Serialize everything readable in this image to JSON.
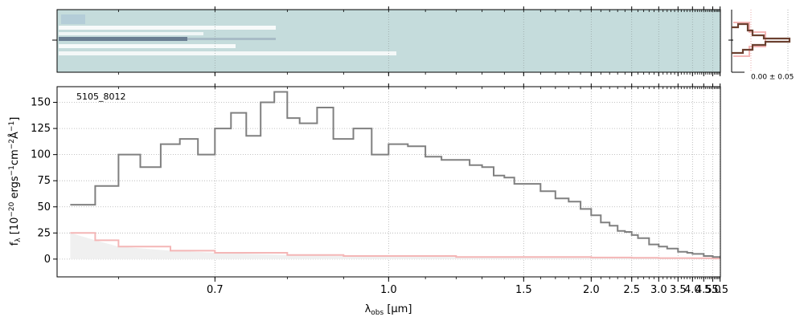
{
  "figure": {
    "object_label": "5105_8012",
    "profile_label": "0.00 ± 0.05"
  },
  "colors": {
    "spectrum": "#808080",
    "error": "#f4b6b6",
    "profile": "#6b4030",
    "twod_bg": "#c5dcdc",
    "grid": "#b0b0b0"
  },
  "chart_data": [
    {
      "type": "heatmap",
      "description_id": "2d-spectrum-panel",
      "x_ticks": [
        0.7,
        1.0,
        1.5,
        2.0,
        2.5,
        3.0,
        3.5,
        4.0,
        4.5,
        5.0,
        5.5
      ],
      "xlim": [
        0.55,
        5.52
      ],
      "grid": true
    },
    {
      "type": "line",
      "title": "",
      "xlabel": "λobs [μm]",
      "ylabel": "fλ [10−20 ergs−1cm−2Å−1]",
      "xlim": [
        0.55,
        5.52
      ],
      "ylim": [
        -17,
        165
      ],
      "x_ticks": [
        0.7,
        1.0,
        1.5,
        2.0,
        2.5,
        3.0,
        3.5,
        4.0,
        4.5,
        5.0,
        5.5
      ],
      "x_tick_labels": [
        "0.7",
        "1.0",
        "1.5",
        "2.0",
        "2.5",
        "3.0",
        "3.5",
        "4.0",
        "4.5",
        "5.0",
        "5.5"
      ],
      "y_ticks": [
        0,
        25,
        50,
        75,
        100,
        125,
        150
      ],
      "grid": true,
      "series": [
        {
          "role": "flux",
          "x": [
            0.56,
            0.58,
            0.6,
            0.62,
            0.64,
            0.66,
            0.68,
            0.7,
            0.72,
            0.74,
            0.76,
            0.78,
            0.8,
            0.82,
            0.85,
            0.88,
            0.92,
            0.96,
            1.0,
            1.05,
            1.1,
            1.15,
            1.2,
            1.25,
            1.3,
            1.35,
            1.4,
            1.45,
            1.5,
            1.6,
            1.7,
            1.8,
            1.9,
            2.0,
            2.1,
            2.2,
            2.3,
            2.4,
            2.5,
            2.6,
            2.8,
            3.0,
            3.2,
            3.5,
            3.8,
            4.0,
            4.5,
            5.0,
            5.5
          ],
          "y": [
            52,
            70,
            100,
            88,
            110,
            115,
            100,
            125,
            140,
            118,
            150,
            160,
            135,
            130,
            145,
            115,
            125,
            100,
            110,
            108,
            98,
            95,
            95,
            90,
            88,
            80,
            78,
            72,
            72,
            65,
            58,
            55,
            48,
            42,
            35,
            32,
            27,
            26,
            23,
            20,
            14,
            12,
            10,
            7,
            6,
            5,
            3,
            2,
            1
          ]
        },
        {
          "role": "error",
          "x": [
            0.56,
            0.58,
            0.6,
            0.65,
            0.7,
            0.8,
            0.9,
            1.0,
            1.2,
            1.5,
            2.0,
            2.5,
            3.0,
            4.0,
            5.0,
            5.5
          ],
          "y": [
            25,
            18,
            12,
            8,
            6,
            4,
            3,
            3,
            2,
            2,
            1.5,
            1.2,
            1,
            0.8,
            0.6,
            0.5
          ]
        }
      ]
    }
  ]
}
